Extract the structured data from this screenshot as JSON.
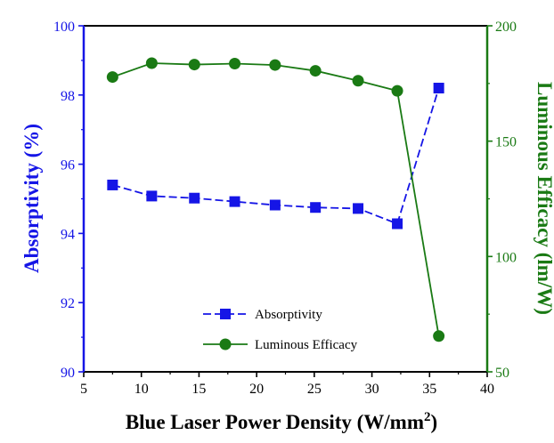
{
  "chart_data": {
    "type": "line",
    "xlabel": "Blue Laser Power Density (W/mm",
    "xlabel_sup": "2",
    "xlabel_close": ")",
    "y1label": "Absorptivity (%)",
    "y2label": "Luminous Efficacy (lm/W)",
    "xlim": [
      5,
      40
    ],
    "y1lim": [
      90,
      100
    ],
    "y2lim": [
      50,
      200
    ],
    "x_ticks": [
      5,
      10,
      15,
      20,
      25,
      30,
      35,
      40
    ],
    "y1_ticks": [
      90,
      92,
      94,
      96,
      98,
      100
    ],
    "y2_ticks": [
      50,
      100,
      150,
      200
    ],
    "grid": false,
    "legend_position": "bottom-center",
    "series": [
      {
        "name": "Absorptivity",
        "axis": "left",
        "color": "#1515e6",
        "marker": "square",
        "x": [
          7.5,
          10.9,
          14.6,
          18.1,
          21.6,
          25.1,
          28.8,
          32.2,
          35.8
        ],
        "y": [
          95.4,
          95.08,
          95.02,
          94.92,
          94.82,
          94.75,
          94.72,
          94.28,
          98.2
        ]
      },
      {
        "name": "Luminous Efficacy",
        "axis": "right",
        "color": "#1a7a14",
        "marker": "circle",
        "x": [
          7.5,
          10.9,
          14.6,
          18.1,
          21.6,
          25.1,
          28.8,
          32.2,
          35.8
        ],
        "y": [
          177.8,
          183.8,
          183.2,
          183.6,
          183.0,
          180.5,
          176.2,
          171.8,
          65.5
        ]
      }
    ]
  }
}
